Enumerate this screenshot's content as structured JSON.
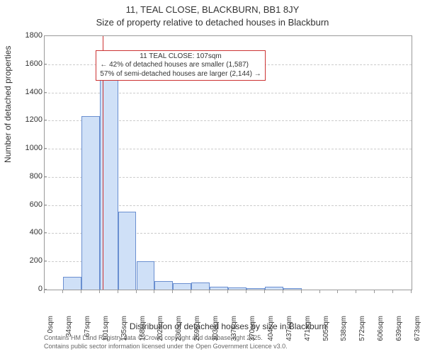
{
  "title_line1": "11, TEAL CLOSE, BLACKBURN, BB1 8JY",
  "title_line2": "Size of property relative to detached houses in Blackburn",
  "ylabel": "Number of detached properties",
  "xlabel": "Distribution of detached houses by size in Blackburn",
  "footer1": "Contains HM Land Registry data © Crown copyright and database right 2025.",
  "footer2": "Contains public sector information licensed under the Open Government Licence v3.0.",
  "chart": {
    "type": "histogram",
    "background_color": "#ffffff",
    "grid_color": "#cccccc",
    "axis_color": "#999999",
    "bar_fill": "#cfe0f7",
    "bar_stroke": "#6a8fd0",
    "marker_color": "#cc3333",
    "ylim": [
      0,
      1800
    ],
    "yticks": [
      0,
      200,
      400,
      600,
      800,
      1000,
      1200,
      1400,
      1600,
      1800
    ],
    "bin_width_sqm": 33.65,
    "xticks_labels": [
      "0sqm",
      "34sqm",
      "67sqm",
      "101sqm",
      "135sqm",
      "168sqm",
      "202sqm",
      "236sqm",
      "269sqm",
      "303sqm",
      "337sqm",
      "370sqm",
      "404sqm",
      "437sqm",
      "471sqm",
      "505sqm",
      "538sqm",
      "572sqm",
      "606sqm",
      "639sqm",
      "673sqm"
    ],
    "bars": [
      0,
      90,
      1230,
      1500,
      555,
      200,
      60,
      45,
      50,
      18,
      15,
      10,
      18,
      8,
      0,
      0,
      0,
      0,
      0,
      0
    ],
    "marker_value_sqm": 107,
    "annotation": {
      "line1": "11 TEAL CLOSE: 107sqm",
      "line2": "← 42% of detached houses are smaller (1,587)",
      "line3": "57% of semi-detached houses are larger (2,144) →"
    },
    "tick_fontsize": 11,
    "label_fontsize": 12,
    "title_fontsize": 13,
    "annotation_fontsize": 10
  }
}
